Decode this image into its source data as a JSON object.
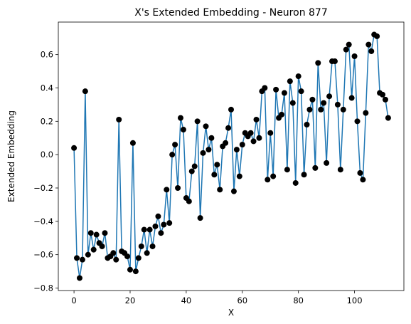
{
  "chart_data": {
    "type": "line",
    "title": "X's Extended Embedding - Neuron 877",
    "xlabel": "X",
    "ylabel": "Extended Embedding",
    "xlim": [
      -5.6,
      117.6
    ],
    "ylim": [
      -0.815,
      0.795
    ],
    "xticks": [
      0,
      20,
      40,
      60,
      80,
      100
    ],
    "yticks": [
      -0.8,
      -0.6,
      -0.4,
      -0.2,
      0.0,
      0.2,
      0.4,
      0.6
    ],
    "ytick_labels": [
      "−0.8",
      "−0.6",
      "−0.4",
      "−0.2",
      "0.0",
      "0.2",
      "0.4",
      "0.6"
    ],
    "grid": false,
    "legend": "none",
    "colors": {
      "line": "#1f77b4",
      "marker": "#000000"
    },
    "x": [
      0,
      1,
      2,
      3,
      4,
      5,
      6,
      7,
      8,
      9,
      10,
      11,
      12,
      13,
      14,
      15,
      16,
      17,
      18,
      19,
      20,
      21,
      22,
      23,
      24,
      25,
      26,
      27,
      28,
      29,
      30,
      31,
      32,
      33,
      34,
      35,
      36,
      37,
      38,
      39,
      40,
      41,
      42,
      43,
      44,
      45,
      46,
      47,
      48,
      49,
      50,
      51,
      52,
      53,
      54,
      55,
      56,
      57,
      58,
      59,
      60,
      61,
      62,
      63,
      64,
      65,
      66,
      67,
      68,
      69,
      70,
      71,
      72,
      73,
      74,
      75,
      76,
      77,
      78,
      79,
      80,
      81,
      82,
      83,
      84,
      85,
      86,
      87,
      88,
      89,
      90,
      91,
      92,
      93,
      94,
      95,
      96,
      97,
      98,
      99,
      100,
      101,
      102,
      103,
      104,
      105,
      106,
      107,
      108,
      109,
      110,
      111,
      112
    ],
    "y": [
      0.04,
      -0.62,
      -0.74,
      -0.63,
      0.38,
      -0.6,
      -0.47,
      -0.57,
      -0.48,
      -0.53,
      -0.55,
      -0.47,
      -0.62,
      -0.61,
      -0.59,
      -0.63,
      0.21,
      -0.58,
      -0.59,
      -0.61,
      -0.69,
      0.07,
      -0.7,
      -0.62,
      -0.55,
      -0.45,
      -0.59,
      -0.45,
      -0.55,
      -0.43,
      -0.37,
      -0.47,
      -0.42,
      -0.21,
      -0.41,
      0.0,
      0.06,
      -0.2,
      0.22,
      0.15,
      -0.26,
      -0.28,
      -0.1,
      -0.07,
      0.2,
      -0.38,
      0.01,
      0.17,
      0.03,
      0.1,
      -0.12,
      -0.06,
      -0.21,
      0.05,
      0.07,
      0.16,
      0.27,
      -0.22,
      0.03,
      -0.13,
      0.06,
      0.13,
      0.11,
      0.13,
      0.08,
      0.21,
      0.1,
      0.38,
      0.4,
      -0.15,
      0.13,
      -0.13,
      0.39,
      0.22,
      0.24,
      0.37,
      -0.09,
      0.44,
      0.31,
      -0.17,
      0.47,
      0.38,
      -0.12,
      0.18,
      0.27,
      0.33,
      -0.08,
      0.55,
      0.27,
      0.31,
      -0.05,
      0.35,
      0.56,
      0.56,
      0.3,
      -0.09,
      0.27,
      0.63,
      0.66,
      0.34,
      0.59,
      0.2,
      -0.11,
      -0.15,
      0.25,
      0.66,
      0.62,
      0.72,
      0.71,
      0.37,
      0.36,
      0.33,
      0.22
    ]
  }
}
